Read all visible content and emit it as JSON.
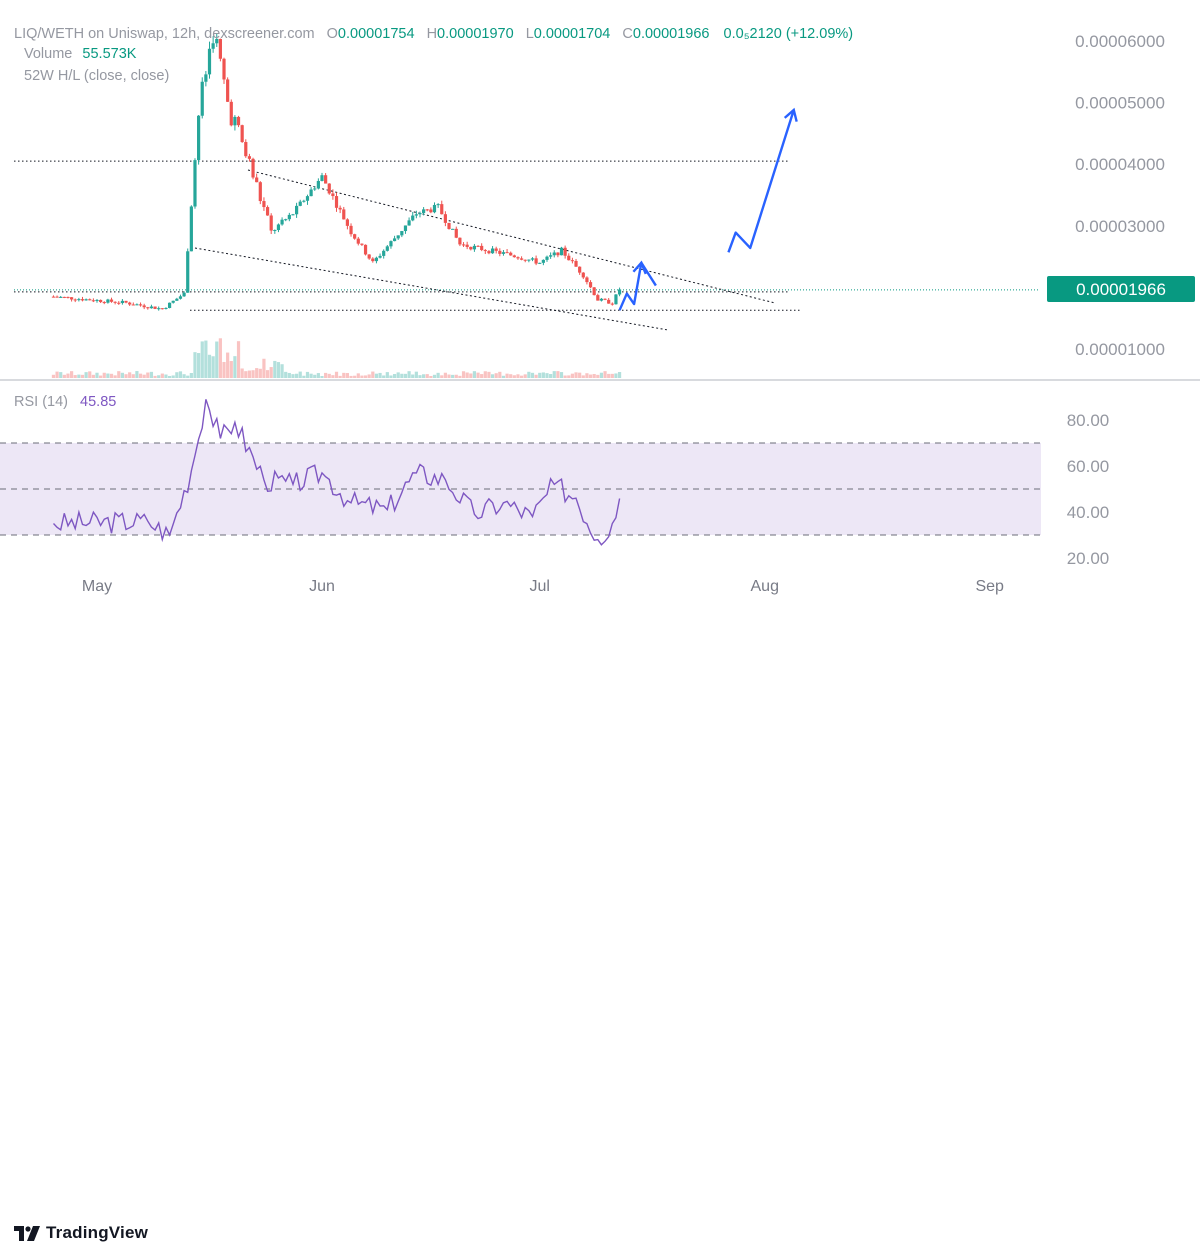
{
  "header": {
    "symbol": "LIQ/WETH on Uniswap, 12h, dexscreener.com",
    "o_label": "O",
    "o_value": "0.00001754",
    "h_label": "H",
    "h_value": "0.00001970",
    "l_label": "L",
    "l_value": "0.00001704",
    "c_label": "C",
    "c_value": "0.00001966",
    "change": "0.0₅2120 (+12.09%)",
    "volume_label": "Volume",
    "volume_value": "55.573K",
    "hl_label": "52W H/L (close, close)"
  },
  "rsi": {
    "label": "RSI (14)",
    "value": "45.85"
  },
  "price_tag": "0.00001966",
  "brand": "TradingView",
  "colors": {
    "up": "#26a69a",
    "down": "#ef5350",
    "rsi_line": "#7e57c2",
    "rsi_band": "#ede7f6",
    "projection": "#2962ff",
    "tag_bg": "#089981"
  },
  "chart_data": [
    {
      "type": "candlestick",
      "ylim": [
        5e-06,
        6.5e-05
      ],
      "y_ticks": [
        "0.00001000",
        "0.00003000",
        "0.00004000",
        "0.00005000",
        "0.00006000"
      ],
      "x_ticks": [
        "May",
        "Jun",
        "Jul",
        "Aug",
        "Sep"
      ],
      "x_tick_dates": [
        "2023-05-01",
        "2023-06-01",
        "2023-07-01",
        "2023-08-01",
        "2023-09-01"
      ],
      "grid": false,
      "last_close": 1.966e-05,
      "series": [
        {
          "name": "Volume",
          "approx_close_path": [
            [
              "2023-04-25",
              1.85e-05
            ],
            [
              "2023-05-05",
              1.75e-05
            ],
            [
              "2023-05-10",
              1.65e-05
            ],
            [
              "2023-05-13",
              1.9e-05
            ],
            [
              "2023-05-15",
              4.8e-05
            ],
            [
              "2023-05-16",
              5.5e-05
            ],
            [
              "2023-05-17",
              6.2e-05
            ],
            [
              "2023-05-19",
              5e-05
            ],
            [
              "2023-05-22",
              4e-05
            ],
            [
              "2023-05-25",
              2.9e-05
            ],
            [
              "2023-05-28",
              3.2e-05
            ],
            [
              "2023-06-01",
              3.8e-05
            ],
            [
              "2023-06-05",
              2.9e-05
            ],
            [
              "2023-06-08",
              2.4e-05
            ],
            [
              "2023-06-11",
              2.8e-05
            ],
            [
              "2023-06-14",
              3.2e-05
            ],
            [
              "2023-06-17",
              3.3e-05
            ],
            [
              "2023-06-20",
              2.7e-05
            ],
            [
              "2023-06-24",
              2.6e-05
            ],
            [
              "2023-06-28",
              2.5e-05
            ],
            [
              "2023-07-01",
              2.4e-05
            ],
            [
              "2023-07-04",
              2.6e-05
            ],
            [
              "2023-07-07",
              2.2e-05
            ],
            [
              "2023-07-09",
              1.8e-05
            ],
            [
              "2023-07-11",
              1.75e-05
            ],
            [
              "2023-07-12",
              1.966e-05
            ]
          ]
        }
      ],
      "levels": [
        4.05e-05,
        1.96e-05,
        1.63e-05
      ],
      "projection_path": [
        [
          "2023-07-12",
          1.63e-05
        ],
        [
          "2023-07-13",
          1.9e-05
        ],
        [
          "2023-07-14",
          1.73e-05
        ],
        [
          "2023-07-15",
          2.4e-05
        ],
        [
          "2023-07-17",
          2.03e-05
        ],
        [
          "2023-07-27",
          2.57e-05
        ],
        [
          "2023-07-28",
          2.89e-05
        ],
        [
          "2023-07-30",
          2.64e-05
        ],
        [
          "2023-08-05",
          4.88e-05
        ]
      ]
    },
    {
      "type": "line",
      "name": "RSI (14)",
      "ylim": [
        20,
        90
      ],
      "y_ticks": [
        "20.00",
        "40.00",
        "60.00",
        "80.00"
      ],
      "band": [
        30,
        70
      ],
      "midline": 50,
      "x": [
        "2023-04-25",
        "2023-05-08",
        "2023-05-11",
        "2023-05-14",
        "2023-05-16",
        "2023-05-18",
        "2023-05-20",
        "2023-05-24",
        "2023-05-28",
        "2023-06-01",
        "2023-06-05",
        "2023-06-10",
        "2023-06-14",
        "2023-06-18",
        "2023-06-22",
        "2023-06-26",
        "2023-06-30",
        "2023-07-03",
        "2023-07-06",
        "2023-07-09",
        "2023-07-11",
        "2023-07-12"
      ],
      "values": [
        35,
        36,
        30,
        58,
        89,
        72,
        79,
        54,
        52,
        57,
        44,
        41,
        57,
        54,
        39,
        44,
        38,
        52,
        46,
        28,
        35,
        45.85
      ]
    }
  ]
}
